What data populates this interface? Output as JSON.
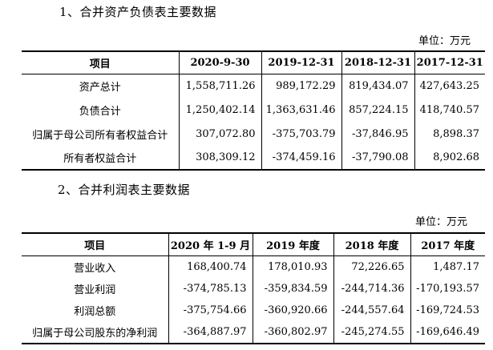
{
  "balance_sheet": {
    "title": "1、合并资产负债表主要数据",
    "unit": "单位：万元",
    "headers": [
      "项目",
      "2020-9-30",
      "2019-12-31",
      "2018-12-31",
      "2017-12-31"
    ],
    "rows": [
      [
        "资产总计",
        "1,558,711.26",
        "989,172.29",
        "819,434.07",
        "427,643.25"
      ],
      [
        "负债合计",
        "1,250,402.14",
        "1,363,631.46",
        "857,224.15",
        "418,740.57"
      ],
      [
        "归属于母公司所有者权益合计",
        "307,072.80",
        "-375,703.79",
        "-37,846.95",
        "8,898.37"
      ],
      [
        "所有者权益合计",
        "308,309.12",
        "-374,459.16",
        "-37,790.08",
        "8,902.68"
      ]
    ]
  },
  "income_statement": {
    "title": "2、合并利润表主要数据",
    "unit": "单位：万元",
    "headers": [
      "项目",
      "2020 年 1-9 月",
      "2019 年度",
      "2018 年度",
      "2017 年度"
    ],
    "rows": [
      [
        "营业收入",
        "168,400.74",
        "178,010.93",
        "72,226.65",
        "1,487.17"
      ],
      [
        "营业利润",
        "-374,785.13",
        "-359,834.59",
        "-244,714.36",
        "-170,193.57"
      ],
      [
        "利润总额",
        "-375,754.66",
        "-360,920.66",
        "-244,557.64",
        "-169,724.53"
      ],
      [
        "归属于母公司股东的净利润",
        "-364,887.97",
        "-360,802.97",
        "-245,274.55",
        "-169,646.49"
      ]
    ]
  }
}
